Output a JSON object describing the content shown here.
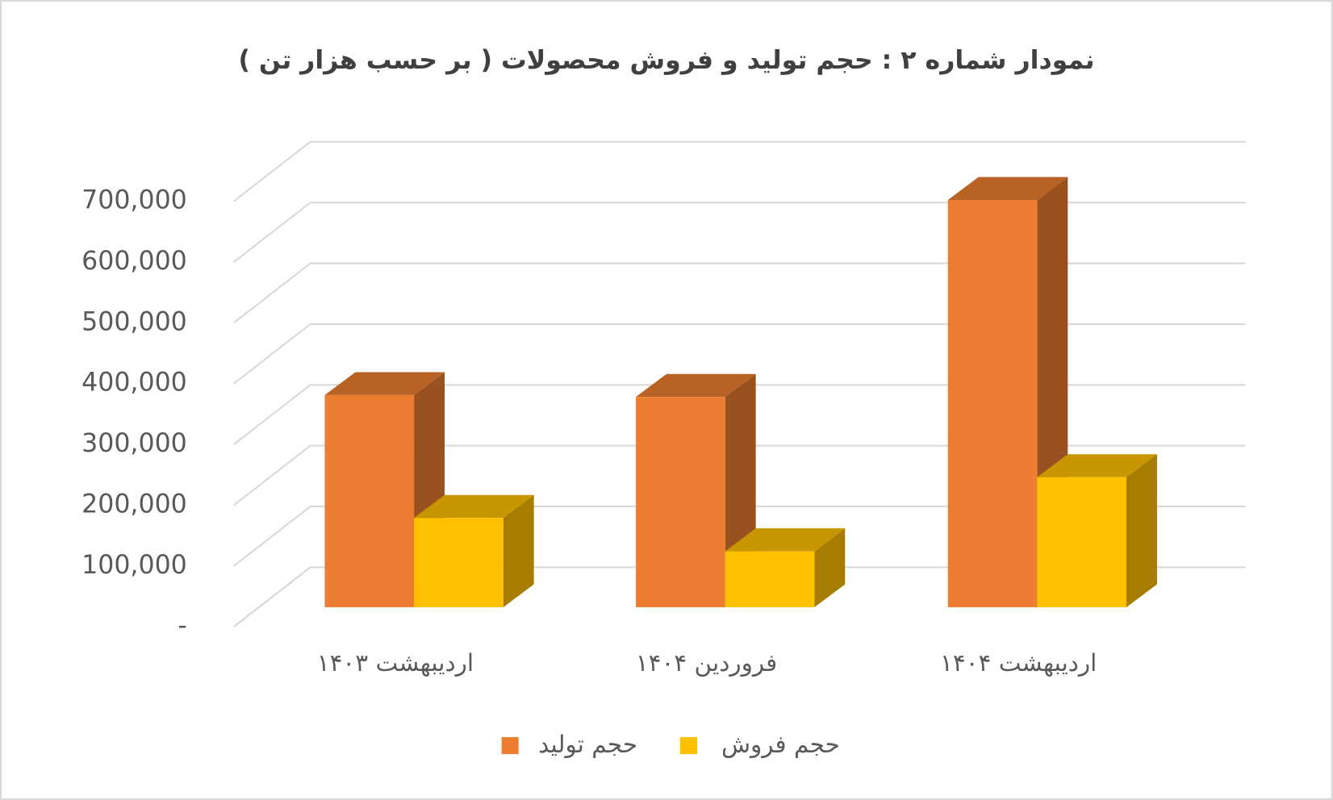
{
  "chart_data": {
    "type": "bar3d",
    "title": "نمودار شماره ۲ : حجم تولید و فروش محصولات ( بر حسب هزار تن )",
    "categories": [
      "اردیبهشت ۱۴۰۳",
      "فروردین ۱۴۰۴",
      "اردیبهشت ۱۴۰۴"
    ],
    "series": [
      {
        "name": "حجم تولید",
        "color": "#ED7D31",
        "values": [
          349000,
          346000,
          670000
        ]
      },
      {
        "name": "حجم فروش",
        "color": "#FFC000",
        "values": [
          147000,
          92000,
          214000
        ]
      }
    ],
    "ylim": [
      0,
      700000
    ],
    "yticks": [
      {
        "value": 0,
        "label": "-"
      },
      {
        "value": 100000,
        "label": "100,000"
      },
      {
        "value": 200000,
        "label": "200,000"
      },
      {
        "value": 300000,
        "label": "300,000"
      },
      {
        "value": 400000,
        "label": "400,000"
      },
      {
        "value": 500000,
        "label": "500,000"
      },
      {
        "value": 600000,
        "label": "600,000"
      },
      {
        "value": 700000,
        "label": "700,000"
      }
    ],
    "grid": true
  }
}
